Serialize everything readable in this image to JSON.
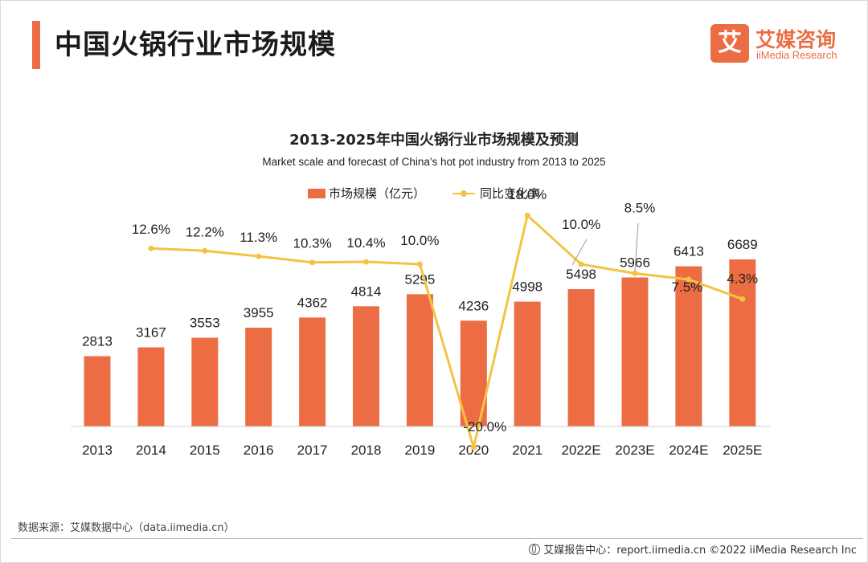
{
  "page": {
    "title": "中国火锅行业市场规模",
    "logo_mark": "艾",
    "logo_cn": "艾媒咨询",
    "logo_en": "iiMedia Research",
    "source": "数据来源：艾媒数据中心（data.iimedia.cn）",
    "footer": "艾媒报告中心：report.iimedia.cn  ©2022  iiMedia Research  Inc"
  },
  "colors": {
    "bar": "#ec6c43",
    "line": "#f5c342",
    "accent": "#ec6c43"
  },
  "chart_data": {
    "type": "bar",
    "title": "2013-2025年中国火锅行业市场规模及预测",
    "subtitle": "Market scale and forecast of China's hot pot industry from 2013 to 2025",
    "categories": [
      "2013",
      "2014",
      "2015",
      "2016",
      "2017",
      "2018",
      "2019",
      "2020",
      "2021",
      "2022E",
      "2023E",
      "2024E",
      "2025E"
    ],
    "series": [
      {
        "name": "市场规模（亿元）",
        "type": "bar",
        "values": [
          2813,
          3167,
          3553,
          3955,
          4362,
          4814,
          5295,
          4236,
          4998,
          5498,
          5966,
          6413,
          6689
        ],
        "labels": [
          "2813",
          "3167",
          "3553",
          "3955",
          "4362",
          "4814",
          "5295",
          "4236",
          "4998",
          "5498",
          "5966",
          "6413",
          "6689"
        ]
      },
      {
        "name": "同比变化率",
        "type": "line",
        "values": [
          null,
          12.6,
          12.2,
          11.3,
          10.3,
          10.4,
          10.0,
          -20.0,
          18.0,
          10.0,
          8.5,
          7.5,
          4.3
        ],
        "labels": [
          "",
          "12.6%",
          "12.2%",
          "11.3%",
          "10.3%",
          "10.4%",
          "10.0%",
          "-20.0%",
          "18.0%",
          "10.0%",
          "8.5%",
          "7.5%",
          "4.3%"
        ]
      }
    ],
    "legend_position": "top",
    "grid": false
  }
}
